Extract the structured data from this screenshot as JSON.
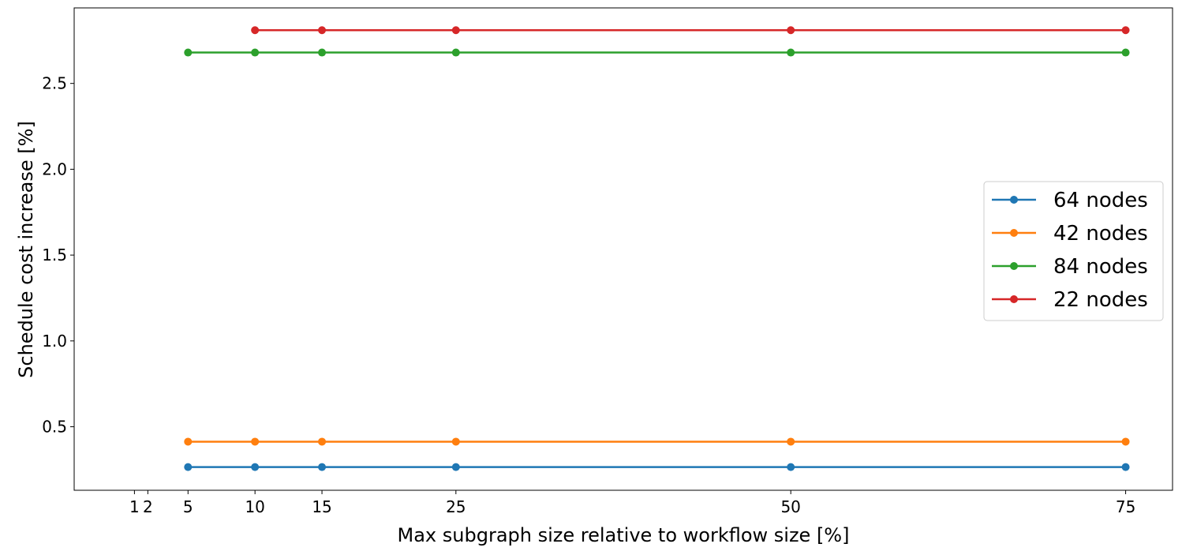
{
  "chart_data": {
    "type": "line",
    "xlabel": "Max subgraph size relative to workflow size [%]",
    "ylabel": "Schedule cost increase [%]",
    "xlim": [
      -3.5,
      78.5
    ],
    "ylim": [
      0.13,
      2.94
    ],
    "x_ticks": [
      1,
      2,
      5,
      10,
      15,
      25,
      50,
      75
    ],
    "y_ticks": [
      0.5,
      1.0,
      1.5,
      2.0,
      2.5
    ],
    "grid": false,
    "legend_position": "center-right",
    "series": [
      {
        "name": "64 nodes",
        "color": "#1f77b4",
        "x": [
          5,
          10,
          15,
          25,
          50,
          75
        ],
        "y": [
          0.265,
          0.265,
          0.265,
          0.265,
          0.265,
          0.265
        ]
      },
      {
        "name": "42 nodes",
        "color": "#ff7f0e",
        "x": [
          5,
          10,
          15,
          25,
          50,
          75
        ],
        "y": [
          0.413,
          0.413,
          0.413,
          0.413,
          0.413,
          0.413
        ]
      },
      {
        "name": "84 nodes",
        "color": "#2ca02c",
        "x": [
          5,
          10,
          15,
          25,
          50,
          75
        ],
        "y": [
          2.68,
          2.68,
          2.68,
          2.68,
          2.68,
          2.68
        ]
      },
      {
        "name": "22 nodes",
        "color": "#d62728",
        "x": [
          10,
          15,
          25,
          50,
          75
        ],
        "y": [
          2.81,
          2.81,
          2.81,
          2.81,
          2.81
        ]
      }
    ]
  }
}
